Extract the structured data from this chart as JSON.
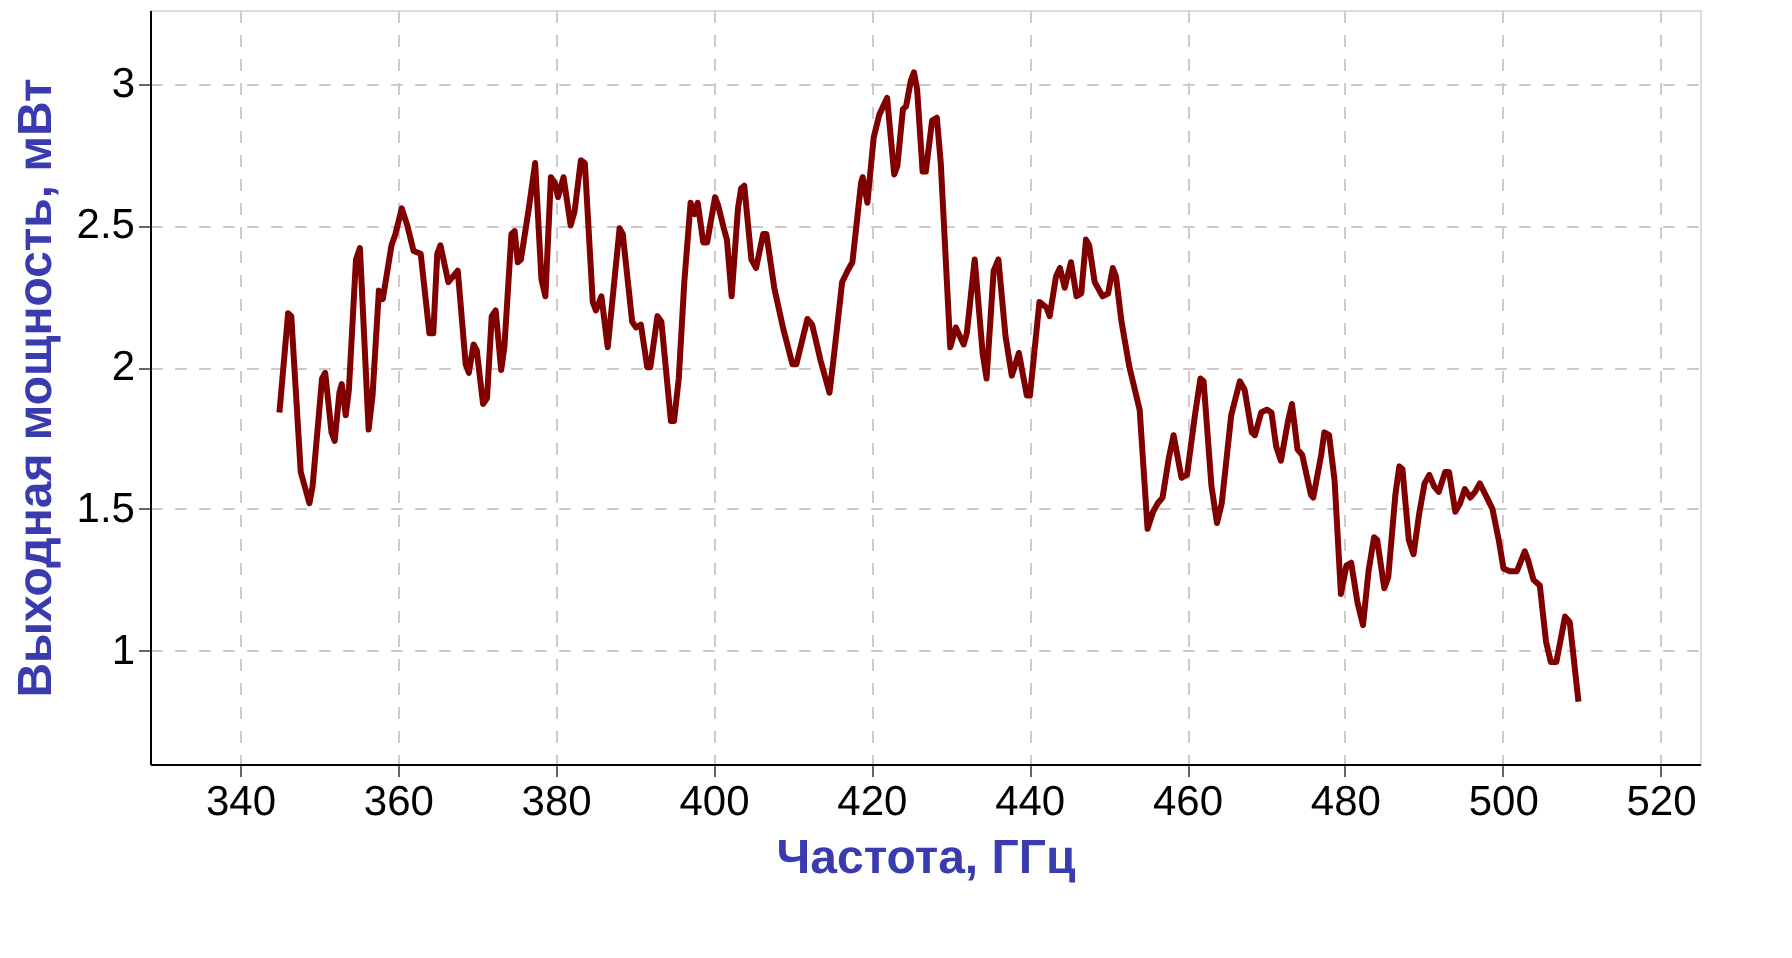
{
  "chart_data": {
    "type": "line",
    "xlabel": "Частота, ГГц",
    "ylabel": "Выходная мощность, мВт",
    "xlim": [
      328.6,
      525
    ],
    "ylim": [
      0.6,
      3.26
    ],
    "xticks": [
      340,
      360,
      380,
      400,
      420,
      440,
      460,
      480,
      500,
      520
    ],
    "yticks": [
      {
        "value": 1,
        "label": "1"
      },
      {
        "value": 1.5,
        "label": "1.5"
      },
      {
        "value": 2,
        "label": "2"
      },
      {
        "value": 2.5,
        "label": "2.5"
      },
      {
        "value": 3,
        "label": "3"
      }
    ],
    "grid": true,
    "legend": false,
    "marker": "none",
    "line_style": "solid",
    "x": [
      345.0,
      346.1,
      346.5,
      347.7,
      348.8,
      349.2,
      350.4,
      350.8,
      351.6,
      352.0,
      352.6,
      352.9,
      353.4,
      353.8,
      354.7,
      355.2,
      356.3,
      356.8,
      357.6,
      358.1,
      359.2,
      359.7,
      360.5,
      361.2,
      362.0,
      362.9,
      364.0,
      364.5,
      365.0,
      365.4,
      366.4,
      367.6,
      368.6,
      369.0,
      369.6,
      370.0,
      370.8,
      371.3,
      371.9,
      372.4,
      373.1,
      373.5,
      374.4,
      374.8,
      375.2,
      375.6,
      376.6,
      377.4,
      378.2,
      378.7,
      379.4,
      379.9,
      380.3,
      381.0,
      381.9,
      382.4,
      383.2,
      383.7,
      384.7,
      385.1,
      385.8,
      386.6,
      388.1,
      388.5,
      389.7,
      390.2,
      390.8,
      391.6,
      392.0,
      392.9,
      393.4,
      394.6,
      395.0,
      395.6,
      396.3,
      397.1,
      397.6,
      398.0,
      398.7,
      399.2,
      400.2,
      400.6,
      401.3,
      401.7,
      402.3,
      403.1,
      403.5,
      403.9,
      404.8,
      405.4,
      406.3,
      406.7,
      407.7,
      408.8,
      410.0,
      410.5,
      411.9,
      412.5,
      413.6,
      414.7,
      415.3,
      416.3,
      417.0,
      417.6,
      418.7,
      418.9,
      419.5,
      420.3,
      421.0,
      422.0,
      422.9,
      423.3,
      424.0,
      424.4,
      425.0,
      425.4,
      425.8,
      426.5,
      426.9,
      427.7,
      428.3,
      428.8,
      430.0,
      430.7,
      431.7,
      432.1,
      433.1,
      434.1,
      434.6,
      435.5,
      436.1,
      437.0,
      437.8,
      438.7,
      439.7,
      440.1,
      441.3,
      442.2,
      442.6,
      443.4,
      443.9,
      444.5,
      445.3,
      446.0,
      446.6,
      447.2,
      447.6,
      448.3,
      449.3,
      450.0,
      450.6,
      451.0,
      451.7,
      452.7,
      454.0,
      455.0,
      455.7,
      456.3,
      456.9,
      457.7,
      458.3,
      459.3,
      460.0,
      461.0,
      461.7,
      462.1,
      463.1,
      463.8,
      464.4,
      465.6,
      466.7,
      467.3,
      468.2,
      468.6,
      469.4,
      470.1,
      470.7,
      471.3,
      471.9,
      472.8,
      473.3,
      474.0,
      474.6,
      475.7,
      476.0,
      477.0,
      477.4,
      478.0,
      478.7,
      479.5,
      480.2,
      480.8,
      481.6,
      482.3,
      483.0,
      483.7,
      484.1,
      485.0,
      485.5,
      486.4,
      486.9,
      487.3,
      488.1,
      488.7,
      489.4,
      490.1,
      490.7,
      491.3,
      491.9,
      492.7,
      493.2,
      494.0,
      494.6,
      495.2,
      495.9,
      496.5,
      497.1,
      498.0,
      498.7,
      499.5,
      500.1,
      500.9,
      501.8,
      502.8,
      503.2,
      503.9,
      504.7,
      505.5,
      506.1,
      506.8,
      507.9,
      508.5,
      509.6
    ],
    "series": [
      {
        "color": "#800000",
        "values": [
          1.84,
          2.19,
          2.18,
          1.63,
          1.52,
          1.58,
          1.96,
          1.98,
          1.77,
          1.74,
          1.91,
          1.94,
          1.83,
          1.92,
          2.38,
          2.42,
          1.78,
          1.9,
          2.27,
          2.24,
          2.43,
          2.47,
          2.56,
          2.5,
          2.41,
          2.4,
          2.12,
          2.12,
          2.4,
          2.43,
          2.3,
          2.34,
          2.01,
          1.98,
          2.08,
          2.06,
          1.87,
          1.89,
          2.18,
          2.2,
          1.99,
          2.07,
          2.47,
          2.48,
          2.37,
          2.38,
          2.56,
          2.72,
          2.31,
          2.25,
          2.67,
          2.65,
          2.6,
          2.67,
          2.5,
          2.55,
          2.73,
          2.72,
          2.23,
          2.2,
          2.25,
          2.07,
          2.49,
          2.47,
          2.16,
          2.14,
          2.15,
          2.0,
          2.0,
          2.18,
          2.16,
          1.81,
          1.81,
          1.96,
          2.3,
          2.58,
          2.54,
          2.58,
          2.44,
          2.44,
          2.6,
          2.57,
          2.49,
          2.45,
          2.25,
          2.56,
          2.63,
          2.64,
          2.38,
          2.35,
          2.47,
          2.47,
          2.28,
          2.14,
          2.01,
          2.01,
          2.17,
          2.15,
          2.02,
          1.91,
          2.05,
          2.3,
          2.34,
          2.37,
          2.65,
          2.67,
          2.58,
          2.81,
          2.89,
          2.95,
          2.68,
          2.71,
          2.91,
          2.92,
          3.01,
          3.04,
          2.98,
          2.69,
          2.69,
          2.87,
          2.88,
          2.72,
          2.07,
          2.14,
          2.08,
          2.12,
          2.38,
          2.05,
          1.96,
          2.34,
          2.38,
          2.11,
          1.97,
          2.05,
          1.9,
          1.9,
          2.23,
          2.21,
          2.18,
          2.32,
          2.35,
          2.28,
          2.37,
          2.25,
          2.26,
          2.45,
          2.43,
          2.3,
          2.25,
          2.26,
          2.35,
          2.32,
          2.16,
          2.0,
          1.85,
          1.43,
          1.49,
          1.52,
          1.54,
          1.68,
          1.76,
          1.61,
          1.62,
          1.83,
          1.96,
          1.95,
          1.58,
          1.45,
          1.52,
          1.83,
          1.95,
          1.92,
          1.77,
          1.76,
          1.84,
          1.85,
          1.84,
          1.72,
          1.67,
          1.81,
          1.87,
          1.71,
          1.69,
          1.55,
          1.54,
          1.69,
          1.77,
          1.76,
          1.6,
          1.2,
          1.3,
          1.31,
          1.17,
          1.09,
          1.28,
          1.4,
          1.39,
          1.22,
          1.26,
          1.55,
          1.65,
          1.64,
          1.39,
          1.34,
          1.48,
          1.59,
          1.62,
          1.58,
          1.56,
          1.63,
          1.63,
          1.49,
          1.52,
          1.57,
          1.54,
          1.56,
          1.59,
          1.54,
          1.5,
          1.39,
          1.29,
          1.28,
          1.28,
          1.35,
          1.32,
          1.25,
          1.23,
          1.03,
          0.96,
          0.96,
          1.12,
          1.1,
          0.82
        ]
      }
    ]
  }
}
